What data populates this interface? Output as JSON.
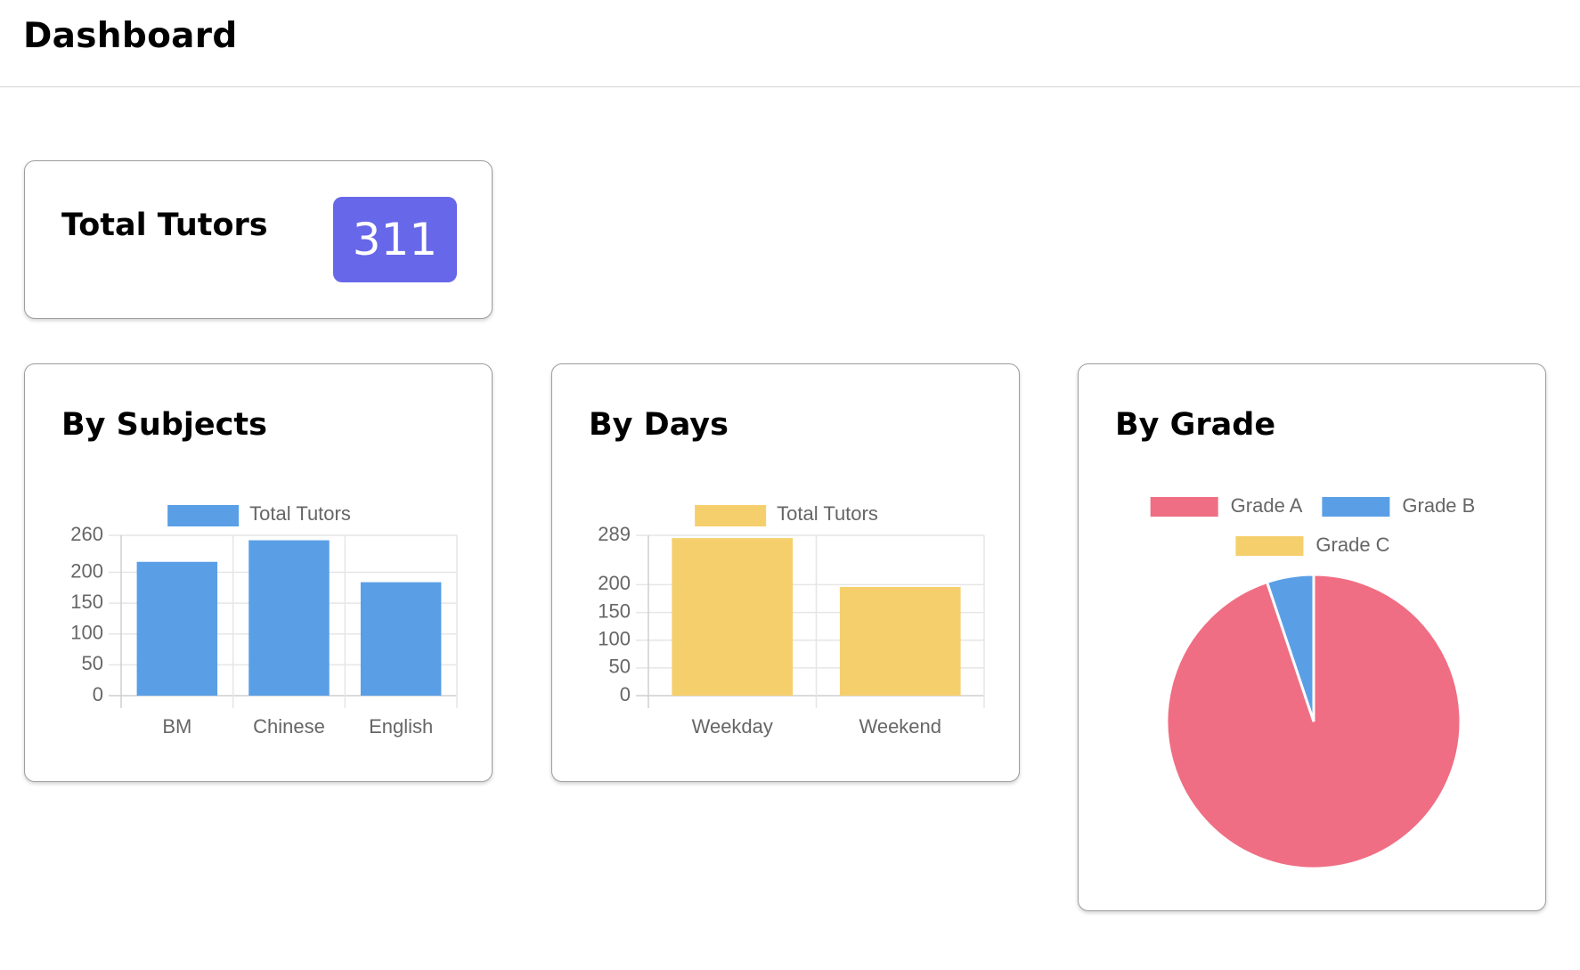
{
  "header": {
    "title": "Dashboard"
  },
  "total_card": {
    "title": "Total Tutors",
    "count": "311",
    "badge_color": "#6767e9"
  },
  "subjects_card": {
    "title": "By Subjects"
  },
  "days_card": {
    "title": "By Days"
  },
  "grade_card": {
    "title": "By Grade"
  },
  "chart_data": [
    {
      "type": "bar",
      "categories": [
        "BM",
        "Chinese",
        "English"
      ],
      "series": [
        {
          "name": "Total Tutors",
          "values": [
            217,
            252,
            184
          ],
          "color": "#5a9fe6"
        }
      ],
      "yticks": [
        0,
        50,
        100,
        150,
        200,
        260
      ],
      "ylim": [
        0,
        260
      ],
      "grid": true,
      "legend": "top"
    },
    {
      "type": "bar",
      "categories": [
        "Weekday",
        "Weekend"
      ],
      "series": [
        {
          "name": "Total Tutors",
          "values": [
            284,
            196
          ],
          "color": "#f6cf6d"
        }
      ],
      "yticks": [
        0,
        50,
        100,
        150,
        200,
        289
      ],
      "ylim": [
        0,
        289
      ],
      "grid": true,
      "legend": "top"
    },
    {
      "type": "pie",
      "labels": [
        "Grade A",
        "Grade B",
        "Grade C"
      ],
      "values": [
        295,
        16,
        0
      ],
      "colors": [
        "#ef6e83",
        "#5a9fe6",
        "#f6cf6d"
      ],
      "legend": "top"
    }
  ]
}
